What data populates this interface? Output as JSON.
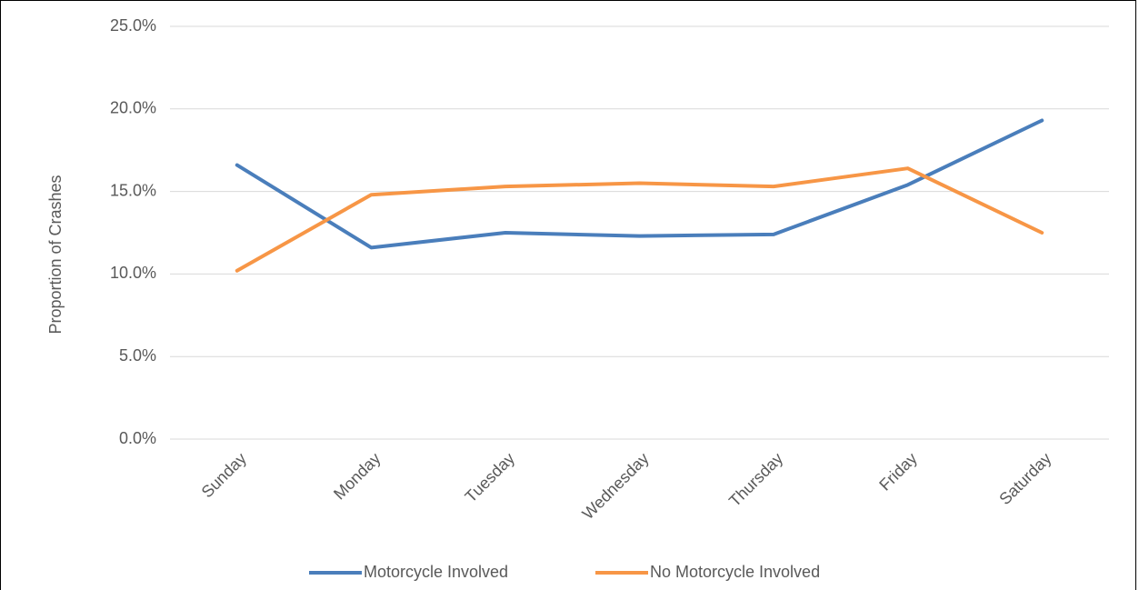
{
  "chart_data": {
    "type": "line",
    "y_label": "Proportion of Crashes",
    "categories": [
      "Sunday",
      "Monday",
      "Tuesday",
      "Wednesday",
      "Thursday",
      "Friday",
      "Saturday"
    ],
    "series": [
      {
        "name": "Motorcycle Involved",
        "color": "#4a7ebb",
        "values": [
          16.6,
          11.6,
          12.5,
          12.3,
          12.4,
          15.4,
          19.3
        ]
      },
      {
        "name": "No Motorcycle Involved",
        "color": "#f79646",
        "values": [
          10.2,
          14.8,
          15.3,
          15.5,
          15.3,
          16.4,
          12.5
        ]
      }
    ],
    "ylim": [
      0,
      25
    ],
    "yticks": [
      {
        "value": 0,
        "label": "0.0%"
      },
      {
        "value": 5,
        "label": "5.0%"
      },
      {
        "value": 10,
        "label": "10.0%"
      },
      {
        "value": 15,
        "label": "15.0%"
      },
      {
        "value": 20,
        "label": "20.0%"
      },
      {
        "value": 25,
        "label": "25.0%"
      }
    ],
    "grid": true,
    "legend": "bottom"
  }
}
